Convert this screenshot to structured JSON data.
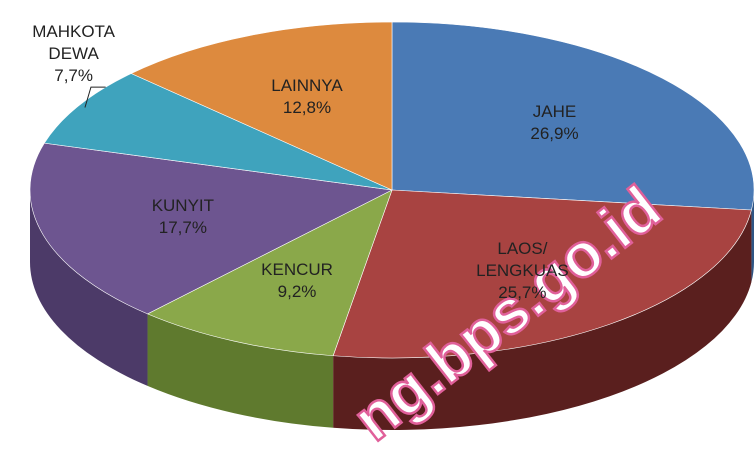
{
  "chart_data": {
    "type": "pie",
    "categories": [
      "JAHE",
      "LAOS/ LENGKUAS",
      "KENCUR",
      "KUNYIT",
      "MAHKOTA DEWA",
      "LAINNYA"
    ],
    "values": [
      26.9,
      25.7,
      9.2,
      17.7,
      7.7,
      12.8
    ],
    "value_labels": [
      "26,9%",
      "25,7%",
      "9,2%",
      "17,7%",
      "7,7%",
      "12,8%"
    ],
    "colors": [
      "#4a7ab5",
      "#a84341",
      "#8aa84a",
      "#6d5590",
      "#3fa3bd",
      "#dd8a3e"
    ],
    "side_colors": [
      "#2f5584",
      "#5a1f1e",
      "#5f7a2e",
      "#4c3a68",
      "#2a7589",
      "#a0602a"
    ],
    "watermark": "ng.bps.go.id"
  }
}
